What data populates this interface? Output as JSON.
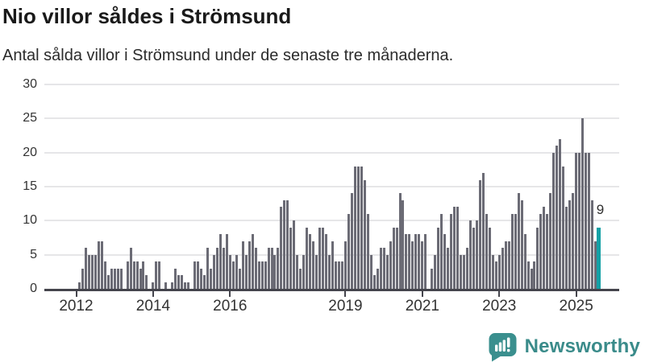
{
  "header": {
    "title": "Nio villor såldes i Strömsund",
    "subtitle": "Antal sålda villor i Strömsund under de senaste tre månaderna."
  },
  "chart_data": {
    "type": "bar",
    "title": "Nio villor såldes i Strömsund",
    "subtitle": "Antal sålda villor i Strömsund under de senaste tre månaderna.",
    "xlabel": "",
    "ylabel": "",
    "ylim": [
      0,
      30
    ],
    "yticks": [
      0,
      5,
      10,
      15,
      20,
      25,
      30
    ],
    "grid": "horizontal",
    "x_unit": "month",
    "x_range_start": "2012-01",
    "values": [
      0,
      1,
      3,
      6,
      5,
      5,
      5,
      7,
      7,
      4,
      2,
      3,
      3,
      3,
      3,
      0,
      4,
      6,
      4,
      4,
      3,
      4,
      2,
      0,
      1,
      4,
      4,
      0,
      1,
      0,
      1,
      3,
      2,
      2,
      1,
      1,
      0,
      4,
      4,
      3,
      2,
      6,
      3,
      5,
      6,
      8,
      6,
      8,
      5,
      4,
      5,
      3,
      7,
      5,
      7,
      8,
      6,
      4,
      4,
      4,
      6,
      6,
      5,
      6,
      12,
      13,
      13,
      9,
      10,
      5,
      3,
      5,
      9,
      8,
      7,
      5,
      9,
      9,
      8,
      5,
      7,
      4,
      4,
      4,
      7,
      11,
      14,
      18,
      18,
      18,
      16,
      11,
      5,
      2,
      3,
      6,
      6,
      5,
      7,
      9,
      9,
      14,
      13,
      8,
      8,
      7,
      8,
      8,
      7,
      8,
      0,
      3,
      5,
      9,
      11,
      8,
      6,
      11,
      12,
      12,
      5,
      5,
      6,
      10,
      9,
      10,
      16,
      17,
      11,
      9,
      5,
      4,
      5,
      6,
      7,
      7,
      11,
      11,
      14,
      13,
      8,
      4,
      3,
      4,
      9,
      11,
      12,
      11,
      14,
      20,
      21,
      22,
      18,
      12,
      13,
      14,
      20,
      20,
      25,
      20,
      20,
      13,
      7
    ],
    "highlight": {
      "value": 9,
      "label": "9",
      "note": "senaste tre månaderna"
    },
    "year_ticks": [
      {
        "label": "2012",
        "index": 0
      },
      {
        "label": "2014",
        "index": 24
      },
      {
        "label": "2016",
        "index": 48
      },
      {
        "label": "2019",
        "index": 84
      },
      {
        "label": "2021",
        "index": 108
      },
      {
        "label": "2023",
        "index": 132
      },
      {
        "label": "2025",
        "index": 156
      }
    ],
    "colors": {
      "bar": "#6b6b75",
      "highlight": "#14a1a6",
      "grid": "#e6e6e8",
      "axis": "#45454d",
      "tick_text": "#333333"
    }
  },
  "footer": {
    "brand": "Newsworthy",
    "brand_color": "#3a8b8a"
  }
}
